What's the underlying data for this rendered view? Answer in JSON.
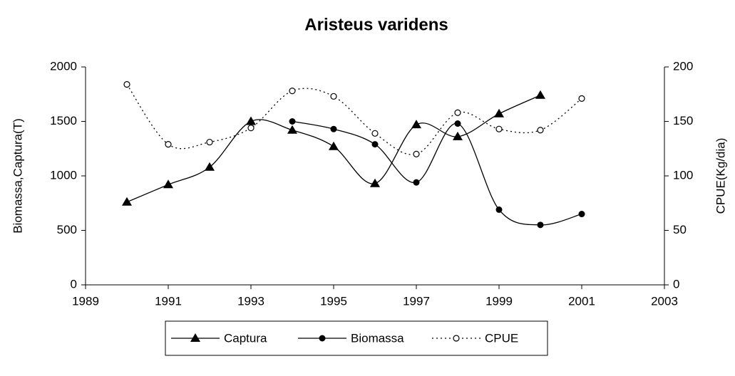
{
  "chart_data": {
    "type": "line",
    "title": "Aristeus varidens",
    "y_label": "Biomassa,Captura(T)",
    "y2_label": "CPUE(Kg/dia)",
    "x": [
      1990,
      1991,
      1992,
      1993,
      1994,
      1995,
      1996,
      1997,
      1998,
      1999,
      2000,
      2001
    ],
    "xlim": [
      1989,
      2003
    ],
    "xticks": [
      1989,
      1991,
      1993,
      1995,
      1997,
      1999,
      2001,
      2003
    ],
    "ylim": [
      0,
      2000
    ],
    "yticks": [
      0,
      500,
      1000,
      1500,
      2000
    ],
    "y2lim": [
      0,
      200
    ],
    "y2ticks": [
      0,
      50,
      100,
      150,
      200
    ],
    "series": [
      {
        "name": "Captura",
        "color": "#000000",
        "marker": "triangle",
        "dash": "solid",
        "values": [
          760,
          920,
          1080,
          1500,
          1420,
          1270,
          930,
          1470,
          1360,
          1570,
          1740,
          null
        ]
      },
      {
        "name": "Biomassa",
        "color": "#000000",
        "marker": "dot",
        "dash": "solid",
        "values": [
          null,
          null,
          null,
          null,
          1500,
          1430,
          1290,
          940,
          1480,
          690,
          550,
          650
        ]
      },
      {
        "name": "CPUE",
        "color": "#000000",
        "marker": "circle",
        "dash": "dotted",
        "axis": "y2",
        "values": [
          184,
          129,
          131,
          144,
          178,
          173,
          139,
          120,
          158,
          143,
          142,
          171
        ]
      }
    ]
  }
}
